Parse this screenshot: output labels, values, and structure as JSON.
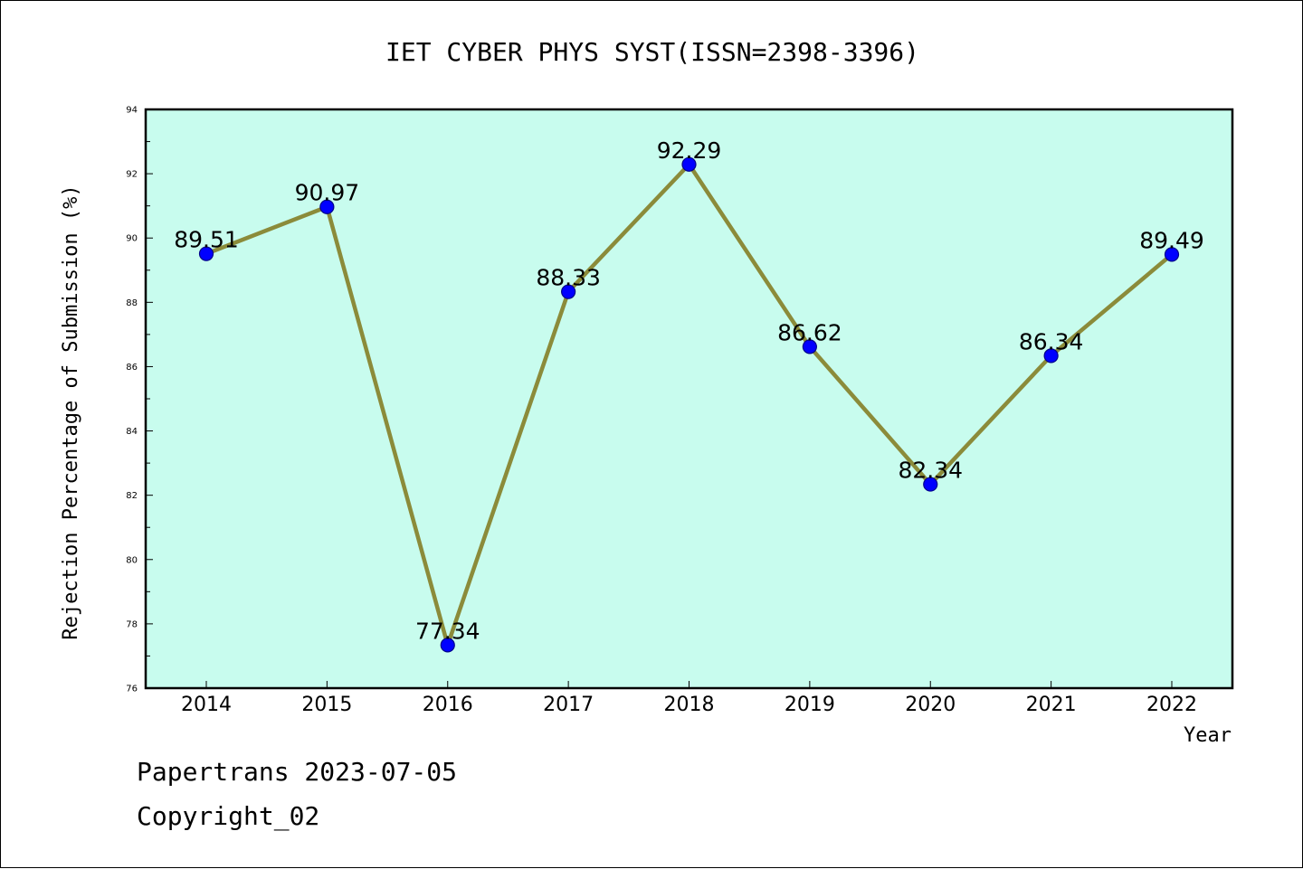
{
  "chart_data": {
    "type": "line",
    "title": "IET CYBER PHYS SYST(ISSN=2398-3396)",
    "xlabel": "Year",
    "ylabel": "Rejection Percentage of Submission (%)",
    "categories": [
      "2014",
      "2015",
      "2016",
      "2017",
      "2018",
      "2019",
      "2020",
      "2021",
      "2022"
    ],
    "series": [
      {
        "values": [
          89.51,
          90.97,
          77.34,
          88.33,
          92.29,
          86.62,
          82.34,
          86.34,
          89.49
        ]
      }
    ],
    "data_labels": [
      "89.51",
      "90.97",
      "77.34",
      "88.33",
      "92.29",
      "86.62",
      "82.34",
      "86.34",
      "89.49"
    ],
    "ylim": [
      76,
      94
    ],
    "y_ticks": [
      "76",
      "78",
      "80",
      "82",
      "84",
      "86",
      "88",
      "90",
      "92",
      "94"
    ],
    "grid": false,
    "legend": "none",
    "colors": {
      "plot_background": "#c8fcee",
      "line": "#8b8b3a",
      "marker": "#0000ff",
      "marker_edge": "#00008b"
    }
  },
  "footer": {
    "line1": "Papertrans 2023-07-05",
    "line2": "Copyright_02"
  }
}
